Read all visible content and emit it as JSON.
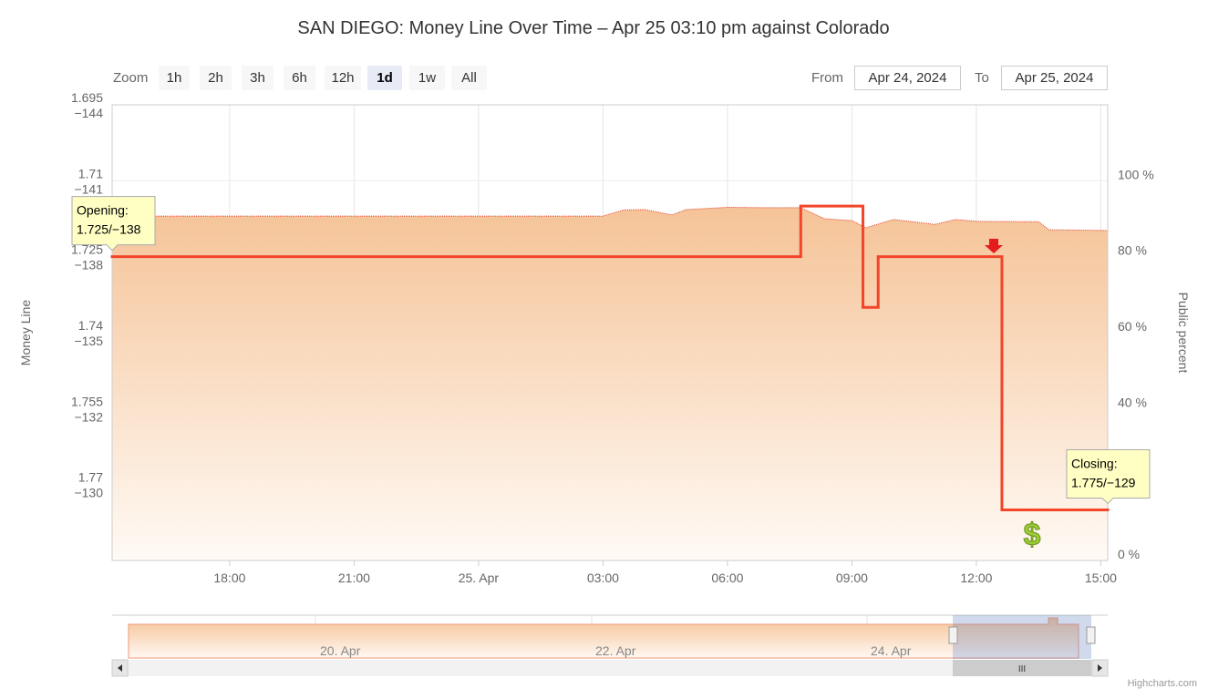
{
  "chart_data": {
    "type": "line",
    "title": "SAN DIEGO: Money Line Over Time – Apr 25 03:10 pm against Colorado",
    "y_label": "Money Line",
    "y2_label": "Public percent",
    "xlim": [
      "2024-04-24T15:10",
      "2024-04-25T15:10"
    ],
    "xticks": [
      {
        "value": "2024-04-24T18:00",
        "label": "18:00"
      },
      {
        "value": "2024-04-24T21:00",
        "label": "21:00"
      },
      {
        "value": "2024-04-25T00:00",
        "label": "25. Apr"
      },
      {
        "value": "2024-04-25T03:00",
        "label": "03:00"
      },
      {
        "value": "2024-04-25T06:00",
        "label": "06:00"
      },
      {
        "value": "2024-04-25T09:00",
        "label": "09:00"
      },
      {
        "value": "2024-04-25T12:00",
        "label": "12:00"
      },
      {
        "value": "2024-04-25T15:00",
        "label": "15:00"
      }
    ],
    "ylim": [
      1.785,
      1.695
    ],
    "yticks": [
      {
        "value": 1.695,
        "label": "1.695",
        "american": "−144"
      },
      {
        "value": 1.71,
        "label": "1.71",
        "american": "−141"
      },
      {
        "value": 1.725,
        "label": "1.725",
        "american": "−138"
      },
      {
        "value": 1.74,
        "label": "1.74",
        "american": "−135"
      },
      {
        "value": 1.755,
        "label": "1.755",
        "american": "−132"
      },
      {
        "value": 1.77,
        "label": "1.77",
        "american": "−130"
      }
    ],
    "y2lim": [
      0,
      120
    ],
    "y2ticks": [
      {
        "value": 0,
        "label": "0 %"
      },
      {
        "value": 20,
        "label": "20 %"
      },
      {
        "value": 40,
        "label": "40 %"
      },
      {
        "value": 60,
        "label": "60 %"
      },
      {
        "value": 80,
        "label": "80 %"
      },
      {
        "value": 100,
        "label": "100 %"
      }
    ],
    "grid": true,
    "series": [
      {
        "type": "area",
        "axis": "y2",
        "color": "#f5c397",
        "x": [
          "2024-04-24T15:10",
          "2024-04-25T03:00",
          "2024-04-25T03:30",
          "2024-04-25T04:00",
          "2024-04-25T04:40",
          "2024-04-25T05:00",
          "2024-04-25T06:00",
          "2024-04-25T07:00",
          "2024-04-25T07:46",
          "2024-04-25T08:20",
          "2024-04-25T09:00",
          "2024-04-25T09:20",
          "2024-04-25T10:00",
          "2024-04-25T11:00",
          "2024-04-25T11:30",
          "2024-04-25T12:00",
          "2024-04-25T13:30",
          "2024-04-25T13:45",
          "2024-04-25T15:10"
        ],
        "values": [
          90.7,
          90.7,
          92.3,
          92.4,
          91,
          92.4,
          93,
          92.9,
          92.9,
          90,
          89.5,
          87.6,
          89.8,
          88.5,
          89.8,
          89.3,
          89.2,
          87.1,
          86.9
        ]
      },
      {
        "type": "line",
        "step": true,
        "color": "#f2452a",
        "x": [
          "2024-04-24T15:10",
          "2024-04-25T07:46",
          "2024-04-25T09:16",
          "2024-04-25T09:38",
          "2024-04-25T12:37",
          "2024-04-25T15:10"
        ],
        "values": [
          1.725,
          1.715,
          1.735,
          1.725,
          1.775,
          1.775
        ]
      }
    ],
    "annotations": {
      "opening": {
        "title": "Opening:",
        "text": "1.725/−138"
      },
      "closing": {
        "title": "Closing:",
        "text": "1.775/−129"
      }
    }
  },
  "range_selector": {
    "zoom_label": "Zoom",
    "buttons": [
      "1h",
      "2h",
      "3h",
      "6h",
      "12h",
      "1d",
      "1w",
      "All"
    ],
    "selected": "1d",
    "from_label": "From",
    "from": "Apr 24, 2024",
    "to_label": "To",
    "to": "Apr 25, 2024"
  },
  "navigator": {
    "labels": [
      "20. Apr",
      "22. Apr",
      "24. Apr"
    ]
  },
  "credits": "Highcharts.com"
}
